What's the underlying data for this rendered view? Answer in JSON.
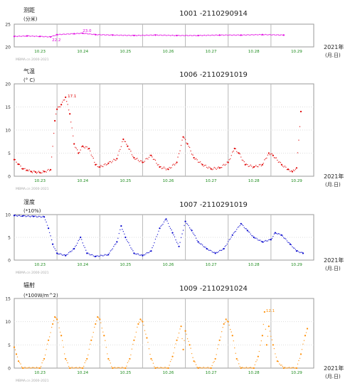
{
  "chart_data": [
    {
      "type": "scatter",
      "title": "1001 -2110290914",
      "ylabel_line1": "测距",
      "ylabel_line2": "(分米)",
      "yticks": [
        "25",
        "20"
      ],
      "ylim": [
        20,
        25
      ],
      "xticks": [
        "10.23",
        "10.24",
        "10.25",
        "10.26",
        "10.27",
        "10.28",
        "10.29"
      ],
      "xlabel_line1": "2021年",
      "xlabel_line2": "(月.日)",
      "annotations": [
        "22.2",
        "23.0"
      ],
      "copyright": "MBMA.cn 2000-2021",
      "color": "#e000e0",
      "series_points": [
        {
          "x": 0.0,
          "y": 22.3
        },
        {
          "x": 0.3,
          "y": 22.4
        },
        {
          "x": 0.6,
          "y": 22.3
        },
        {
          "x": 0.85,
          "y": 22.2
        },
        {
          "x": 1.0,
          "y": 22.7
        },
        {
          "x": 1.4,
          "y": 22.9
        },
        {
          "x": 1.6,
          "y": 23.0
        },
        {
          "x": 1.9,
          "y": 22.7
        },
        {
          "x": 2.3,
          "y": 22.6
        },
        {
          "x": 2.8,
          "y": 22.5
        },
        {
          "x": 3.3,
          "y": 22.6
        },
        {
          "x": 3.8,
          "y": 22.5
        },
        {
          "x": 4.3,
          "y": 22.5
        },
        {
          "x": 4.8,
          "y": 22.6
        },
        {
          "x": 5.3,
          "y": 22.6
        },
        {
          "x": 5.8,
          "y": 22.7
        },
        {
          "x": 6.3,
          "y": 22.6
        }
      ]
    },
    {
      "type": "scatter",
      "title": "1006 -2110291019",
      "ylabel_line1": "气温",
      "ylabel_line2": "(° C)",
      "yticks": [
        "20",
        "15",
        "10",
        "5",
        "0"
      ],
      "ylim": [
        0,
        20
      ],
      "xticks": [
        "10.23",
        "10.24",
        "10.25",
        "10.26",
        "10.27",
        "10.28",
        "10.29"
      ],
      "xlabel_line1": "2021年",
      "xlabel_line2": "(月.日)",
      "annotations": [
        "17.1"
      ],
      "copyright": "MBMA.cn 2000-2021",
      "color": "#e00000",
      "series_points": [
        {
          "x": 0.0,
          "y": 3.6
        },
        {
          "x": 0.1,
          "y": 2.6
        },
        {
          "x": 0.2,
          "y": 1.6
        },
        {
          "x": 0.3,
          "y": 1.3
        },
        {
          "x": 0.4,
          "y": 1.0
        },
        {
          "x": 0.5,
          "y": 0.9
        },
        {
          "x": 0.6,
          "y": 0.8
        },
        {
          "x": 0.7,
          "y": 1.0
        },
        {
          "x": 0.85,
          "y": 1.4
        },
        {
          "x": 0.95,
          "y": 12.0
        },
        {
          "x": 1.0,
          "y": 14.5
        },
        {
          "x": 1.1,
          "y": 15.5
        },
        {
          "x": 1.2,
          "y": 17.1
        },
        {
          "x": 1.3,
          "y": 13.5
        },
        {
          "x": 1.4,
          "y": 7.0
        },
        {
          "x": 1.5,
          "y": 5.0
        },
        {
          "x": 1.6,
          "y": 6.5
        },
        {
          "x": 1.75,
          "y": 6.0
        },
        {
          "x": 1.9,
          "y": 2.5
        },
        {
          "x": 2.0,
          "y": 2.0
        },
        {
          "x": 2.2,
          "y": 2.8
        },
        {
          "x": 2.4,
          "y": 3.8
        },
        {
          "x": 2.55,
          "y": 8.0
        },
        {
          "x": 2.65,
          "y": 6.5
        },
        {
          "x": 2.8,
          "y": 4.0
        },
        {
          "x": 3.0,
          "y": 3.0
        },
        {
          "x": 3.2,
          "y": 4.5
        },
        {
          "x": 3.4,
          "y": 2.0
        },
        {
          "x": 3.6,
          "y": 1.5
        },
        {
          "x": 3.8,
          "y": 3.0
        },
        {
          "x": 3.95,
          "y": 8.5
        },
        {
          "x": 4.05,
          "y": 7.0
        },
        {
          "x": 4.2,
          "y": 4.0
        },
        {
          "x": 4.4,
          "y": 2.5
        },
        {
          "x": 4.6,
          "y": 1.6
        },
        {
          "x": 4.8,
          "y": 1.8
        },
        {
          "x": 5.0,
          "y": 3.0
        },
        {
          "x": 5.15,
          "y": 6.0
        },
        {
          "x": 5.25,
          "y": 5.0
        },
        {
          "x": 5.4,
          "y": 2.5
        },
        {
          "x": 5.6,
          "y": 2.0
        },
        {
          "x": 5.8,
          "y": 2.5
        },
        {
          "x": 5.95,
          "y": 5.0
        },
        {
          "x": 6.05,
          "y": 4.5
        },
        {
          "x": 6.25,
          "y": 2.5
        },
        {
          "x": 6.4,
          "y": 1.5
        },
        {
          "x": 6.5,
          "y": 1.0
        },
        {
          "x": 6.6,
          "y": 1.8
        },
        {
          "x": 6.7,
          "y": 14.0
        }
      ]
    },
    {
      "type": "scatter",
      "title": "1007 -2110291019",
      "ylabel_line1": "湿度",
      "ylabel_line2": "(*10%)",
      "yticks": [
        "10",
        "5",
        "0"
      ],
      "ylim": [
        0,
        10
      ],
      "xticks": [
        "10.23",
        "10.24",
        "10.25",
        "10.26",
        "10.27",
        "10.28",
        "10.29"
      ],
      "xlabel_line1": "2021年",
      "xlabel_line2": "(月.日)",
      "annotations": [],
      "copyright": "MBMA.cn 2000-2021",
      "color": "#0000cc",
      "series_points": [
        {
          "x": 0.0,
          "y": 9.8
        },
        {
          "x": 0.2,
          "y": 9.7
        },
        {
          "x": 0.45,
          "y": 9.6
        },
        {
          "x": 0.7,
          "y": 9.5
        },
        {
          "x": 0.8,
          "y": 7.0
        },
        {
          "x": 0.9,
          "y": 3.5
        },
        {
          "x": 1.0,
          "y": 1.5
        },
        {
          "x": 1.2,
          "y": 1.0
        },
        {
          "x": 1.4,
          "y": 2.5
        },
        {
          "x": 1.55,
          "y": 5.0
        },
        {
          "x": 1.7,
          "y": 1.5
        },
        {
          "x": 1.9,
          "y": 0.8
        },
        {
          "x": 2.2,
          "y": 1.2
        },
        {
          "x": 2.4,
          "y": 4.0
        },
        {
          "x": 2.5,
          "y": 7.5
        },
        {
          "x": 2.6,
          "y": 5.0
        },
        {
          "x": 2.8,
          "y": 1.5
        },
        {
          "x": 3.0,
          "y": 1.0
        },
        {
          "x": 3.2,
          "y": 2.0
        },
        {
          "x": 3.4,
          "y": 7.0
        },
        {
          "x": 3.55,
          "y": 9.0
        },
        {
          "x": 3.7,
          "y": 6.0
        },
        {
          "x": 3.85,
          "y": 3.0
        },
        {
          "x": 4.0,
          "y": 8.5
        },
        {
          "x": 4.15,
          "y": 6.5
        },
        {
          "x": 4.3,
          "y": 4.0
        },
        {
          "x": 4.5,
          "y": 2.5
        },
        {
          "x": 4.7,
          "y": 1.5
        },
        {
          "x": 4.9,
          "y": 2.5
        },
        {
          "x": 5.1,
          "y": 5.5
        },
        {
          "x": 5.3,
          "y": 8.0
        },
        {
          "x": 5.45,
          "y": 6.5
        },
        {
          "x": 5.6,
          "y": 5.0
        },
        {
          "x": 5.8,
          "y": 4.0
        },
        {
          "x": 6.0,
          "y": 4.5
        },
        {
          "x": 6.1,
          "y": 6.0
        },
        {
          "x": 6.25,
          "y": 5.5
        },
        {
          "x": 6.45,
          "y": 3.5
        },
        {
          "x": 6.6,
          "y": 2.0
        },
        {
          "x": 6.75,
          "y": 1.5
        }
      ]
    },
    {
      "type": "scatter",
      "title": "1009 -2110291024",
      "ylabel_line1": "辐射",
      "ylabel_line2": "(*100W/m^2)",
      "yticks": [
        "15",
        "10",
        "5",
        "0"
      ],
      "ylim": [
        0,
        15
      ],
      "xticks": [
        "10.23",
        "10.24",
        "10.25",
        "10.26",
        "10.27",
        "10.28",
        "10.29"
      ],
      "xlabel_line1": "2021年",
      "xlabel_line2": "(月.日)",
      "annotations": [
        "12.1"
      ],
      "copyright": "MBMA.cn 2000-2021",
      "color": "#ff8c00",
      "series_points": [
        {
          "x": 0.0,
          "y": 4.5
        },
        {
          "x": 0.05,
          "y": 3.0
        },
        {
          "x": 0.1,
          "y": 1.5
        },
        {
          "x": 0.2,
          "y": 0.0
        },
        {
          "x": 0.6,
          "y": 0.0
        },
        {
          "x": 0.7,
          "y": 2.0
        },
        {
          "x": 0.8,
          "y": 6.0
        },
        {
          "x": 0.9,
          "y": 9.5
        },
        {
          "x": 0.95,
          "y": 11.0
        },
        {
          "x": 1.0,
          "y": 10.5
        },
        {
          "x": 1.1,
          "y": 7.0
        },
        {
          "x": 1.2,
          "y": 2.0
        },
        {
          "x": 1.3,
          "y": 0.0
        },
        {
          "x": 1.6,
          "y": 0.0
        },
        {
          "x": 1.7,
          "y": 2.0
        },
        {
          "x": 1.8,
          "y": 6.0
        },
        {
          "x": 1.9,
          "y": 9.5
        },
        {
          "x": 1.95,
          "y": 11.0
        },
        {
          "x": 2.0,
          "y": 10.5
        },
        {
          "x": 2.1,
          "y": 7.0
        },
        {
          "x": 2.2,
          "y": 2.0
        },
        {
          "x": 2.3,
          "y": 0.0
        },
        {
          "x": 2.6,
          "y": 0.0
        },
        {
          "x": 2.7,
          "y": 2.0
        },
        {
          "x": 2.8,
          "y": 6.0
        },
        {
          "x": 2.9,
          "y": 9.5
        },
        {
          "x": 2.95,
          "y": 10.5
        },
        {
          "x": 3.0,
          "y": 10.0
        },
        {
          "x": 3.1,
          "y": 6.5
        },
        {
          "x": 3.2,
          "y": 2.0
        },
        {
          "x": 3.3,
          "y": 0.0
        },
        {
          "x": 3.6,
          "y": 0.0
        },
        {
          "x": 3.7,
          "y": 2.5
        },
        {
          "x": 3.8,
          "y": 6.0
        },
        {
          "x": 3.9,
          "y": 9.0
        },
        {
          "x": 3.95,
          "y": 4.0
        },
        {
          "x": 4.0,
          "y": 8.0
        },
        {
          "x": 4.1,
          "y": 5.0
        },
        {
          "x": 4.2,
          "y": 1.5
        },
        {
          "x": 4.3,
          "y": 0.0
        },
        {
          "x": 4.6,
          "y": 0.0
        },
        {
          "x": 4.7,
          "y": 2.0
        },
        {
          "x": 4.8,
          "y": 6.0
        },
        {
          "x": 4.9,
          "y": 9.5
        },
        {
          "x": 4.95,
          "y": 10.5
        },
        {
          "x": 5.0,
          "y": 10.0
        },
        {
          "x": 5.1,
          "y": 7.0
        },
        {
          "x": 5.2,
          "y": 2.0
        },
        {
          "x": 5.3,
          "y": 0.0
        },
        {
          "x": 5.6,
          "y": 0.0
        },
        {
          "x": 5.7,
          "y": 2.5
        },
        {
          "x": 5.8,
          "y": 7.0
        },
        {
          "x": 5.85,
          "y": 12.1
        },
        {
          "x": 5.9,
          "y": 5.0
        },
        {
          "x": 5.95,
          "y": 9.0
        },
        {
          "x": 6.05,
          "y": 5.0
        },
        {
          "x": 6.15,
          "y": 1.5
        },
        {
          "x": 6.3,
          "y": 0.0
        },
        {
          "x": 6.6,
          "y": 0.0
        },
        {
          "x": 6.7,
          "y": 3.0
        },
        {
          "x": 6.8,
          "y": 7.0
        },
        {
          "x": 6.85,
          "y": 8.5
        }
      ]
    }
  ]
}
